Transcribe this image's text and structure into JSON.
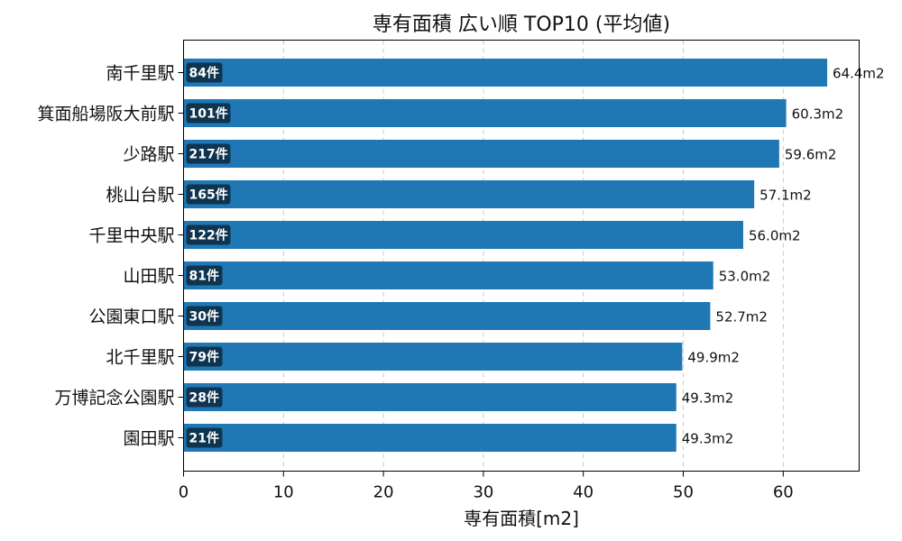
{
  "chart_data": {
    "type": "bar",
    "orientation": "horizontal",
    "title": "専有面積 広い順 TOP10 (平均値)",
    "xlabel": "専有面積[m2]",
    "ylabel": "",
    "xlim": [
      0,
      67.6
    ],
    "xticks": [
      0,
      10,
      20,
      30,
      40,
      50,
      60
    ],
    "grid": "x-dashed",
    "bar_color": "#1f77b4",
    "badge_color": "#0f3450",
    "categories": [
      "南千里駅",
      "箕面船場阪大前駅",
      "少路駅",
      "桃山台駅",
      "千里中央駅",
      "山田駅",
      "公園東口駅",
      "北千里駅",
      "万博記念公園駅",
      "園田駅"
    ],
    "values": [
      64.4,
      60.3,
      59.6,
      57.1,
      56.0,
      53.0,
      52.7,
      49.9,
      49.3,
      49.3
    ],
    "value_labels": [
      "64.4m2",
      "60.3m2",
      "59.6m2",
      "57.1m2",
      "56.0m2",
      "53.0m2",
      "52.7m2",
      "49.9m2",
      "49.3m2",
      "49.3m2"
    ],
    "counts": [
      "84件",
      "101件",
      "217件",
      "165件",
      "122件",
      "81件",
      "30件",
      "79件",
      "28件",
      "21件"
    ]
  }
}
